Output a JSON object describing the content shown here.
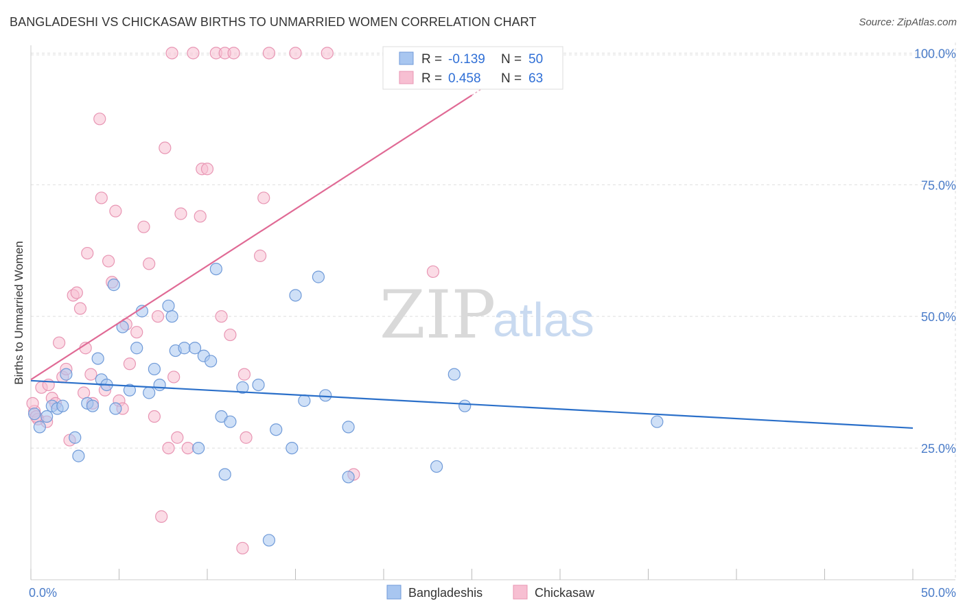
{
  "title": "BANGLADESHI VS CHICKASAW BIRTHS TO UNMARRIED WOMEN CORRELATION CHART",
  "source": "Source: ZipAtlas.com",
  "watermark": {
    "zip": "ZIP",
    "atlas": "atlas"
  },
  "legend": {
    "r_label": "R =",
    "n_label": "N =",
    "series": [
      {
        "r": "-0.139",
        "n": "50"
      },
      {
        "r": "0.458",
        "n": "63"
      }
    ]
  },
  "bottom_legend": [
    "Bangladeshis",
    "Chickasaw"
  ],
  "colors": {
    "blue_fill": "#a8c6f0",
    "blue_stroke": "#6f9ad8",
    "blue_line": "#2a6fc9",
    "pink_fill": "#f7bfd2",
    "pink_stroke": "#e895b3",
    "pink_line": "#e06a95",
    "grid": "#dddddd",
    "tick_text": "#4a7cc9"
  },
  "chart_data": {
    "type": "scatter",
    "title": "BANGLADESHI VS CHICKASAW BIRTHS TO UNMARRIED WOMEN CORRELATION CHART",
    "xlabel": "",
    "ylabel": "Births to Unmarried Women",
    "xlim": [
      0,
      50
    ],
    "ylim": [
      0,
      102
    ],
    "x_tick_labels": [
      "0.0%",
      "50.0%"
    ],
    "y_ticks": [
      25,
      50,
      75,
      100
    ],
    "y_tick_labels": [
      "25.0%",
      "50.0%",
      "75.0%",
      "100.0%"
    ],
    "grid": true,
    "legend_position": "top-center",
    "series": [
      {
        "name": "Bangladeshis",
        "r": -0.139,
        "n": 50,
        "trend": {
          "x0": 0,
          "y0": 37.8,
          "x1": 50,
          "y1": 28.8
        },
        "points": [
          [
            0.2,
            31.5
          ],
          [
            0.5,
            29
          ],
          [
            0.9,
            31
          ],
          [
            1.2,
            33
          ],
          [
            1.5,
            32.5
          ],
          [
            1.8,
            33
          ],
          [
            2.0,
            39
          ],
          [
            2.5,
            27
          ],
          [
            2.7,
            23.5
          ],
          [
            3.2,
            33.5
          ],
          [
            3.8,
            42
          ],
          [
            4.0,
            38
          ],
          [
            4.3,
            37
          ],
          [
            4.8,
            32.5
          ],
          [
            4.7,
            56
          ],
          [
            5.2,
            48
          ],
          [
            5.6,
            36
          ],
          [
            6.0,
            44
          ],
          [
            6.3,
            51
          ],
          [
            6.7,
            35.5
          ],
          [
            7.0,
            40
          ],
          [
            7.3,
            37
          ],
          [
            7.8,
            52
          ],
          [
            8.0,
            50
          ],
          [
            8.2,
            43.5
          ],
          [
            8.7,
            44
          ],
          [
            9.3,
            44
          ],
          [
            9.5,
            25
          ],
          [
            9.8,
            42.5
          ],
          [
            10.2,
            41.5
          ],
          [
            10.5,
            59
          ],
          [
            10.8,
            31
          ],
          [
            11.0,
            20
          ],
          [
            11.3,
            30
          ],
          [
            12.0,
            36.5
          ],
          [
            12.9,
            37
          ],
          [
            13.5,
            7.5
          ],
          [
            13.9,
            28.5
          ],
          [
            14.8,
            25
          ],
          [
            15.0,
            54
          ],
          [
            15.5,
            34
          ],
          [
            16.3,
            57.5
          ],
          [
            16.7,
            35
          ],
          [
            18.0,
            19.5
          ],
          [
            18.0,
            29
          ],
          [
            23.0,
            21.5
          ],
          [
            24.0,
            39
          ],
          [
            24.6,
            33
          ],
          [
            35.5,
            30
          ],
          [
            3.5,
            33
          ]
        ]
      },
      {
        "name": "Chickasaw",
        "r": 0.458,
        "n": 63,
        "trend": {
          "x0": 0,
          "y0": 38,
          "x1": 25,
          "y1": 92
        },
        "points": [
          [
            0.2,
            32
          ],
          [
            0.4,
            30.5
          ],
          [
            0.6,
            36.5
          ],
          [
            0.9,
            30
          ],
          [
            1.0,
            37
          ],
          [
            1.2,
            34.5
          ],
          [
            1.4,
            33.5
          ],
          [
            1.6,
            45
          ],
          [
            1.8,
            38.5
          ],
          [
            2.0,
            40
          ],
          [
            2.2,
            26.5
          ],
          [
            2.4,
            54
          ],
          [
            2.6,
            54.5
          ],
          [
            2.8,
            51.5
          ],
          [
            3.0,
            35.5
          ],
          [
            3.1,
            44
          ],
          [
            3.2,
            62
          ],
          [
            3.4,
            39
          ],
          [
            3.5,
            33.5
          ],
          [
            3.9,
            87.5
          ],
          [
            4.0,
            72.5
          ],
          [
            4.2,
            36
          ],
          [
            4.4,
            60.5
          ],
          [
            4.6,
            56.5
          ],
          [
            4.8,
            70
          ],
          [
            5.0,
            34
          ],
          [
            5.2,
            32.5
          ],
          [
            5.4,
            48.5
          ],
          [
            5.6,
            41
          ],
          [
            6.0,
            47
          ],
          [
            6.4,
            67
          ],
          [
            6.7,
            60
          ],
          [
            7.0,
            31
          ],
          [
            7.2,
            50
          ],
          [
            7.4,
            12
          ],
          [
            7.6,
            82
          ],
          [
            7.8,
            25
          ],
          [
            8.1,
            38.5
          ],
          [
            8.0,
            100
          ],
          [
            8.3,
            27
          ],
          [
            8.5,
            69.5
          ],
          [
            8.9,
            25
          ],
          [
            9.2,
            100
          ],
          [
            9.6,
            69
          ],
          [
            9.7,
            78
          ],
          [
            10.0,
            78
          ],
          [
            10.5,
            100
          ],
          [
            10.8,
            50
          ],
          [
            11.0,
            100
          ],
          [
            11.3,
            46.5
          ],
          [
            11.5,
            100
          ],
          [
            12.0,
            6
          ],
          [
            12.2,
            27
          ],
          [
            12.1,
            39
          ],
          [
            13.0,
            61.5
          ],
          [
            13.2,
            72.5
          ],
          [
            13.5,
            100
          ],
          [
            15.0,
            100
          ],
          [
            16.8,
            100
          ],
          [
            18.3,
            20
          ],
          [
            22.8,
            58.5
          ],
          [
            0.3,
            31
          ],
          [
            0.1,
            33.5
          ]
        ]
      }
    ]
  }
}
